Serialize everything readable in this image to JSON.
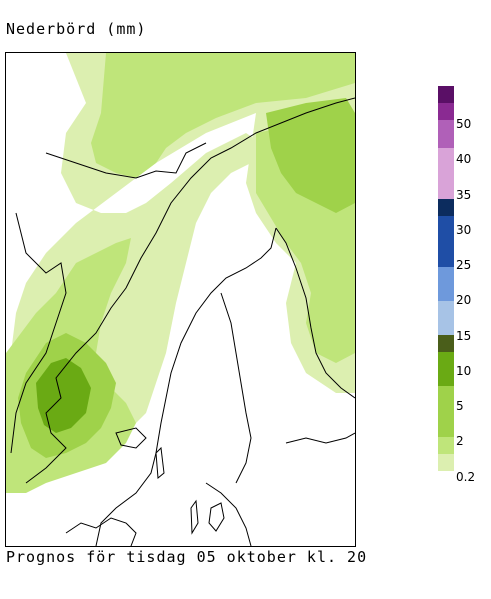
{
  "header": {
    "title": "Nederbörd (mm)"
  },
  "footer": {
    "caption": "Prognos för tisdag 05 oktober kl. 20"
  },
  "legend": {
    "unit": "mm",
    "levels": [
      {
        "label": "0.2",
        "color": "#dcefb0"
      },
      {
        "label": "2",
        "color": "#bfe57a"
      },
      {
        "label": "5",
        "color": "#9fd24a"
      },
      {
        "label": "10",
        "color": "#6aaa14"
      },
      {
        "label": "15",
        "color": "#4a5e1a"
      },
      {
        "label": "20",
        "color": "#a7c3e6"
      },
      {
        "label": "25",
        "color": "#6e99dc"
      },
      {
        "label": "30",
        "color": "#1f4ea6"
      },
      {
        "label": "35",
        "color": "#0c2c5e"
      },
      {
        "label": "40",
        "color": "#d9a3d8"
      },
      {
        "label": "50",
        "color": "#b060b8"
      },
      {
        "label": "",
        "color": "#8a2a92"
      },
      {
        "label": "",
        "color": "#5a0f66"
      }
    ]
  }
}
